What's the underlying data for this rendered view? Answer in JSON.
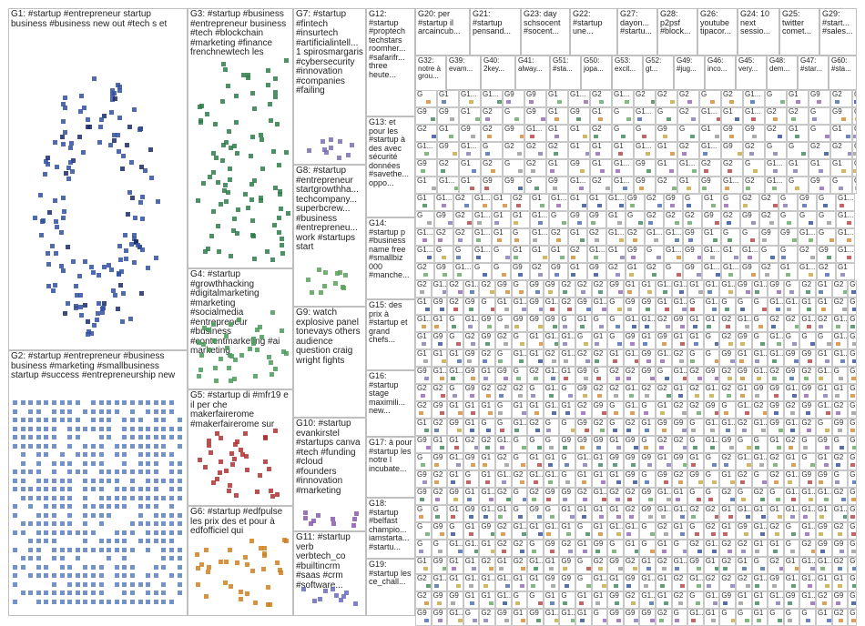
{
  "groups": [
    {
      "id": "G1",
      "label": "G1: #startup #entrepreneur startup business #business new out #tech s et",
      "color": "#1f3f8f"
    },
    {
      "id": "G2",
      "label": "G2: #startup #entrepreneur #business business #marketing #smallbusiness startup #success #entrepreneurship new",
      "color": "#3a5fa8"
    },
    {
      "id": "G3",
      "label": "G3: #startup #business #entrepreneur business #tech #blockchain #marketing #finance frenchnewtech les",
      "color": "#2e7d4a"
    },
    {
      "id": "G4",
      "label": "G4: #startup #growthhacking #digitalmarketing #marketing #socialmedia #entrepreneur #business #contentmarketing #ai marketing",
      "color": "#4a9a5a"
    },
    {
      "id": "G5",
      "label": "G5: #startup di #mfr19 e il per che makerfairerome #makerfairerome sur",
      "color": "#b03030"
    },
    {
      "id": "G6",
      "label": "G6: #startup #edfpulse les prix des et pour à edfofficiel qui",
      "color": "#d08020"
    },
    {
      "id": "G7",
      "label": "G7: #startup #fintech #insurtech #artificialintell... 1 spirosmargaris #cybersecurity #innovation #companies #failing",
      "color": "#7a6fb0"
    },
    {
      "id": "G8",
      "label": "G8: #startup #entrepreneur startgrowthha... techcompany... superbcrew... #business #entrepreneu... work #startups start",
      "color": "#5aa05a"
    },
    {
      "id": "G9",
      "label": "G9: watch explosive panel tonevays others audience question craig wright fights",
      "color": "#9a9a9a"
    },
    {
      "id": "G10",
      "label": "G10: #startup evankirstel #startups canva #tech #funding #cloud #founders #innovation #marketing",
      "color": "#8a5ab0"
    },
    {
      "id": "G11",
      "label": "G11: #startup verb verbtech_co #builtincrm #saas #crm #software...",
      "color": "#6a6ac0"
    },
    {
      "id": "G12",
      "label": "G12: #startup #proptech techstars roomher... #safarifr... three heute...",
      "color": "#c0a030"
    },
    {
      "id": "G13",
      "label": "G13: et pour les #startup à des avec sécurité données #savethe... oppo...",
      "color": "#c06060"
    },
    {
      "id": "G14",
      "label": "G14: #startup p #business name free #smallbiz 000 #manche...",
      "color": "#70a070"
    },
    {
      "id": "G15",
      "label": "G15: des prix à #startup et grand chefs...",
      "color": "#a07050"
    },
    {
      "id": "G16",
      "label": "G16: #startup stage maximili... new...",
      "color": "#6080a0"
    },
    {
      "id": "G17",
      "label": "G17: à pour #startup les notre l incubate...",
      "color": "#a060a0"
    },
    {
      "id": "G18",
      "label": "G18: #startup #belfast champio... iamstarta... #startu...",
      "color": "#508050"
    },
    {
      "id": "G19",
      "label": "G19: #startup les ce_chall...",
      "color": "#8080c0"
    },
    {
      "id": "G20",
      "label": "G20: per #startup il arcaincub...",
      "color": "#909090"
    },
    {
      "id": "G21",
      "label": "G21: #startup pensand...",
      "color": "#909090"
    },
    {
      "id": "G23",
      "label": "G23: day schsocent #socent...",
      "color": "#909090"
    },
    {
      "id": "G22",
      "label": "G22: #startup une...",
      "color": "#909090"
    },
    {
      "id": "G27",
      "label": "G27: dayon... #startu...",
      "color": "#909090"
    },
    {
      "id": "G28",
      "label": "G28: p2psf #block...",
      "color": "#909090"
    },
    {
      "id": "G26",
      "label": "G26: youtube tipacor...",
      "color": "#909090"
    },
    {
      "id": "G24",
      "label": "G24: 10 next sessio...",
      "color": "#909090"
    },
    {
      "id": "G25",
      "label": "G25: twitter comet...",
      "color": "#909090"
    },
    {
      "id": "G29",
      "label": "G29: #start... #sales...",
      "color": "#909090"
    },
    {
      "id": "G32",
      "label": "G32: notre à grou...",
      "color": "#909090"
    },
    {
      "id": "G39",
      "label": "G39: evam...",
      "color": "#909090"
    },
    {
      "id": "G40",
      "label": "G40: 2key...",
      "color": "#909090"
    },
    {
      "id": "G41",
      "label": "G41: alway...",
      "color": "#909090"
    },
    {
      "id": "G51",
      "label": "G51: #sta...",
      "color": "#909090"
    },
    {
      "id": "G50",
      "label": "G50: jopa...",
      "color": "#909090"
    },
    {
      "id": "G53",
      "label": "G53: excit...",
      "color": "#909090"
    },
    {
      "id": "G52",
      "label": "G52: gt...",
      "color": "#909090"
    },
    {
      "id": "G49",
      "label": "G49: #jug...",
      "color": "#909090"
    },
    {
      "id": "G46",
      "label": "G46: inco...",
      "color": "#909090"
    },
    {
      "id": "G45",
      "label": "G45: very...",
      "color": "#909090"
    },
    {
      "id": "G48",
      "label": "G48: dem...",
      "color": "#909090"
    },
    {
      "id": "G47",
      "label": "G47: #star...",
      "color": "#909090"
    },
    {
      "id": "G60",
      "label": "G60: #sta...",
      "color": "#909090"
    }
  ],
  "grid_text": [
    "G1",
    "G",
    "G9",
    "G1...",
    "G2"
  ]
}
